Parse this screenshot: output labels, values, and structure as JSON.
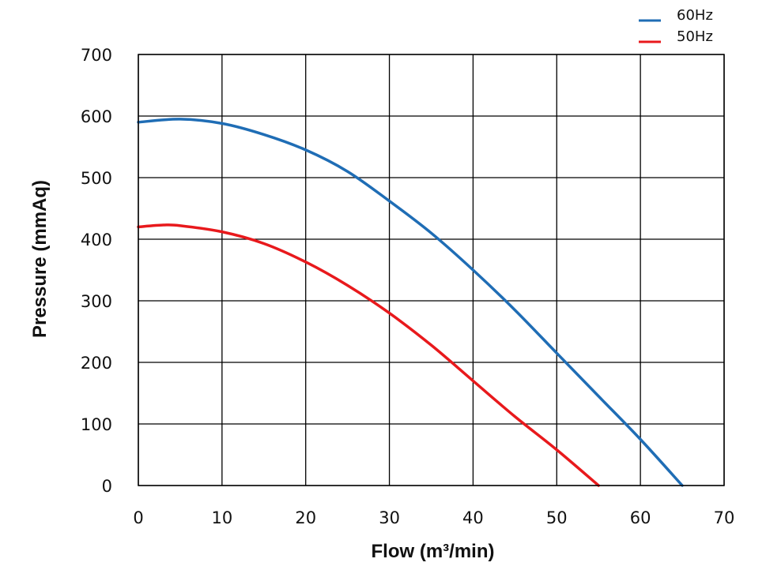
{
  "chart_data": {
    "type": "line",
    "title": "",
    "xlabel": "Flow (m³/min)",
    "ylabel": "Pressure (mmAq)",
    "xlim": [
      0,
      70
    ],
    "ylim": [
      0,
      700
    ],
    "xticks": [
      0,
      10,
      20,
      30,
      40,
      50,
      60,
      70
    ],
    "yticks": [
      0,
      100,
      200,
      300,
      400,
      500,
      600,
      700
    ],
    "grid": true,
    "legend": "top-right",
    "series": [
      {
        "name": "60Hz",
        "color": "#1f6db5",
        "x": [
          0,
          5,
          10,
          15,
          20,
          25,
          30,
          35,
          40,
          45,
          50,
          55,
          60,
          65
        ],
        "y": [
          590,
          595,
          588,
          570,
          545,
          510,
          462,
          410,
          350,
          285,
          215,
          145,
          75,
          0
        ]
      },
      {
        "name": "50Hz",
        "color": "#e8191c",
        "x": [
          0,
          3,
          5,
          10,
          15,
          20,
          25,
          30,
          35,
          40,
          45,
          50,
          55
        ],
        "y": [
          420,
          423,
          422,
          412,
          393,
          363,
          325,
          280,
          228,
          170,
          112,
          58,
          0
        ]
      }
    ]
  }
}
